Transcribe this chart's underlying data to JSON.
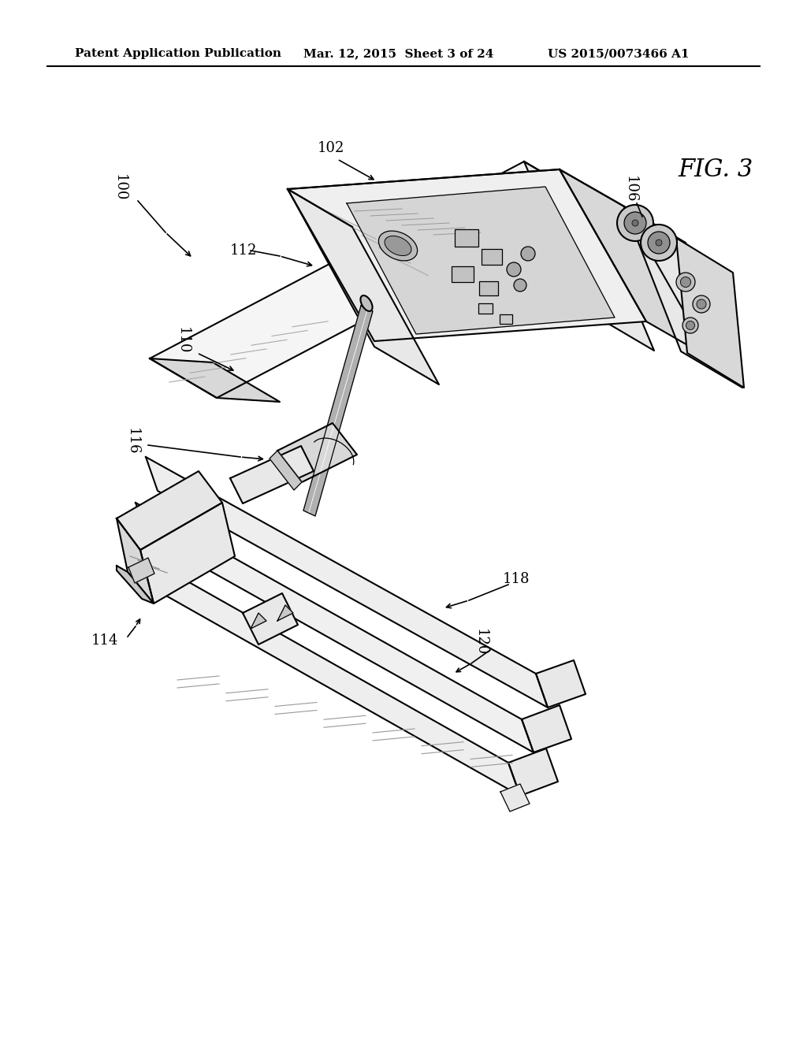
{
  "bg_color": "#ffffff",
  "header_left": "Patent Application Publication",
  "header_mid": "Mar. 12, 2015  Sheet 3 of 24",
  "header_right": "US 2015/0073466 A1",
  "fig_label": "FIG. 3",
  "line_color": "#000000",
  "fill_light": "#f5f5f5",
  "fill_mid": "#e8e8e8",
  "fill_dark": "#d8d8d8",
  "fill_darker": "#c8c8c8",
  "hatch_color": "#aaaaaa",
  "ref_labels": [
    "100",
    "102",
    "106",
    "110",
    "112",
    "114",
    "116",
    "118",
    "120"
  ]
}
